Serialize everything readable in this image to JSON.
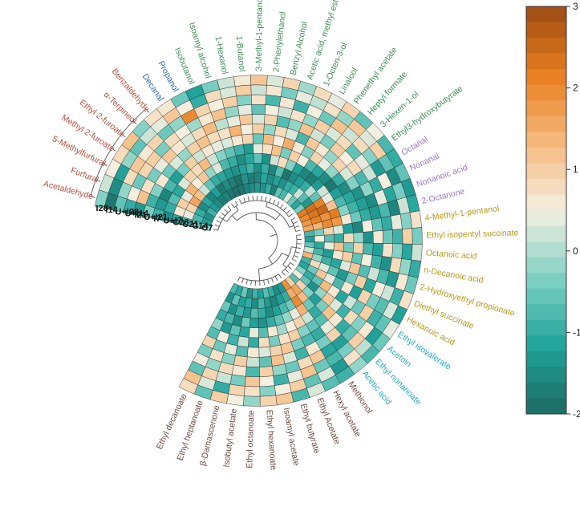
{
  "chart_data": {
    "type": "heatmap",
    "layout": "circular",
    "samples": [
      "C7",
      "C14",
      "C21",
      "C28",
      "U+I7",
      "I7",
      "U+I21",
      "I21",
      "U+I14",
      "U+I28",
      "I14",
      "I28"
    ],
    "compounds": [
      {
        "name": "Acetaldehyde",
        "group": "aldehydes"
      },
      {
        "name": "Furfural",
        "group": "aldehydes"
      },
      {
        "name": "5-Methylfurfural",
        "group": "aldehydes"
      },
      {
        "name": "Methyl 2-furoate",
        "group": "aldehydes"
      },
      {
        "name": "Ethyl 2-furoate",
        "group": "aldehydes"
      },
      {
        "name": "α-Terpineol",
        "group": "aldehydes"
      },
      {
        "name": "Benzaldehyde",
        "group": "aldehydes"
      },
      {
        "name": "Decanal",
        "group": "blue"
      },
      {
        "name": "Propanol",
        "group": "blue"
      },
      {
        "name": "Isobutanol",
        "group": "alcohols"
      },
      {
        "name": "Isoamyl alcohol",
        "group": "alcohols"
      },
      {
        "name": "1-Hexanol",
        "group": "alcohols"
      },
      {
        "name": "1-Butanol",
        "group": "alcohols"
      },
      {
        "name": "3-Methyl-1-pentanol",
        "group": "alcohols"
      },
      {
        "name": "2-Phenylethanol",
        "group": "alcohols"
      },
      {
        "name": "Benzyl Alcohol",
        "group": "alcohols"
      },
      {
        "name": "Acetic acid, methyl ester",
        "group": "alcohols"
      },
      {
        "name": "1-Octen-3-ol",
        "group": "alcohols"
      },
      {
        "name": "Linalool",
        "group": "alcohols"
      },
      {
        "name": "Phenethyl acetate",
        "group": "alcohols"
      },
      {
        "name": "Heptyl formate",
        "group": "alcohols"
      },
      {
        "name": "3-Hexen-1-ol",
        "group": "alcohols"
      },
      {
        "name": "Ethyl3-hydroxybutyrate",
        "group": "alcohols"
      },
      {
        "name": "Octanal",
        "group": "purple"
      },
      {
        "name": "Nonanal",
        "group": "purple"
      },
      {
        "name": "Nonanoic acid",
        "group": "purple"
      },
      {
        "name": "2-Octanone",
        "group": "purple"
      },
      {
        "name": "4-Methyl-1-pentanol",
        "group": "olive"
      },
      {
        "name": "Ethyl isopentyl succinate",
        "group": "olive"
      },
      {
        "name": "Octanoic acid",
        "group": "olive"
      },
      {
        "name": "n-Decanoic acid",
        "group": "olive"
      },
      {
        "name": "2-Hydroxyethyl propionate",
        "group": "olive"
      },
      {
        "name": "Diethyl succinate",
        "group": "olive"
      },
      {
        "name": "Hexanoic acid",
        "group": "olive"
      },
      {
        "name": "Ethyl isovalerate",
        "group": "cyan"
      },
      {
        "name": "Acetoin",
        "group": "cyan"
      },
      {
        "name": "Ethyl nonanoate",
        "group": "cyan"
      },
      {
        "name": "Acetic acid",
        "group": "cyan"
      },
      {
        "name": "Methionol",
        "group": "esters"
      },
      {
        "name": "Hexyl acetate",
        "group": "esters"
      },
      {
        "name": "Ethyl Acetate",
        "group": "esters"
      },
      {
        "name": "Ethyl butyrate",
        "group": "esters"
      },
      {
        "name": "Isoamyl acetate",
        "group": "esters"
      },
      {
        "name": "Ethyl hexanoate",
        "group": "esters"
      },
      {
        "name": "Ethyl octanoate",
        "group": "esters"
      },
      {
        "name": "Isobutyl acetate",
        "group": "esters"
      },
      {
        "name": "β-Damascenone",
        "group": "esters"
      },
      {
        "name": "Ethyl heptanoate",
        "group": "esters"
      },
      {
        "name": "Ethyl decanoate",
        "group": "esters"
      }
    ],
    "group_colors": {
      "aldehydes": "#b5503f",
      "blue": "#2f6aa6",
      "alcohols": "#3f8f5a",
      "purple": "#9a78c4",
      "olive": "#b39a1a",
      "cyan": "#2aa7b5",
      "esters": "#6b4a3f"
    },
    "values": [
      [
        -0.2,
        -0.5,
        -0.8,
        -1.1,
        -1.4,
        -0.9,
        -0.4,
        -1.3,
        -1.0,
        -0.6,
        -1.8,
        -0.3
      ],
      [
        -1.2,
        -0.8,
        0.4,
        0.6,
        -1.0,
        -1.3,
        -0.9,
        1.2,
        0.5,
        -0.2,
        -1.5,
        0.2
      ],
      [
        -1.4,
        -1.0,
        0.9,
        1.0,
        -0.7,
        -1.6,
        -0.3,
        0.7,
        -0.5,
        0.8,
        -1.2,
        0.5
      ],
      [
        -0.9,
        -1.5,
        1.6,
        0.4,
        -1.1,
        -0.8,
        0.6,
        -0.4,
        0.9,
        1.1,
        -0.2,
        0.8
      ],
      [
        -1.3,
        -1.1,
        1.2,
        1.4,
        0.3,
        -1.2,
        -0.5,
        0.4,
        1.0,
        0.6,
        -0.6,
        1.2
      ],
      [
        -1.5,
        -1.6,
        0.2,
        0.5,
        0.9,
        -0.4,
        0.3,
        1.1,
        -0.4,
        0.9,
        0.2,
        -0.3
      ],
      [
        -1.7,
        -1.2,
        -0.6,
        1.1,
        0.8,
        1.0,
        -0.2,
        0.6,
        0.8,
        -0.5,
        0.4,
        0.7
      ],
      [
        -1.6,
        -1.8,
        -1.0,
        -0.2,
        1.3,
        0.2,
        1.0,
        0.3,
        0.5,
        -0.2,
        1.1,
        0.6
      ],
      [
        -1.8,
        -1.5,
        -1.1,
        0.3,
        0.2,
        0.6,
        1.2,
        0.8,
        -0.1,
        2.0,
        0.5,
        -0.5
      ],
      [
        -1.9,
        -1.7,
        -1.3,
        -0.8,
        -0.3,
        0.4,
        0.8,
        1.3,
        0.6,
        0.9,
        -1.0,
        -1.2
      ],
      [
        -1.8,
        -1.9,
        -1.4,
        -1.0,
        -0.6,
        0.3,
        0.7,
        0.1,
        1.2,
        0.5,
        0.8,
        -0.4
      ],
      [
        -1.6,
        -1.4,
        -1.2,
        -1.5,
        -0.9,
        0.6,
        1.4,
        0.4,
        -0.2,
        1.0,
        0.3,
        0.2
      ],
      [
        -1.5,
        -1.7,
        -0.9,
        -1.1,
        -1.3,
        0.9,
        0.5,
        1.1,
        0.4,
        -0.3,
        1.0,
        0.6
      ],
      [
        -1.3,
        -1.6,
        -1.5,
        -0.6,
        0.4,
        -0.5,
        1.0,
        0.3,
        -0.6,
        0.7,
        0.2,
        1.1
      ],
      [
        -1.4,
        -1.1,
        -1.0,
        -1.4,
        0.7,
        1.3,
        -0.2,
        0.9,
        0.5,
        -0.8,
        0.6,
        0.3
      ],
      [
        -1.0,
        -1.5,
        -1.6,
        0.2,
        1.2,
        0.5,
        0.8,
        -0.7,
        0.2,
        0.6,
        -0.4,
        0.9
      ],
      [
        -1.7,
        -1.2,
        -0.7,
        0.8,
        -0.4,
        1.5,
        0.3,
        -0.2,
        0.7,
        -0.9,
        0.4,
        -0.1
      ],
      [
        -0.6,
        -1.4,
        -1.8,
        -0.3,
        1.0,
        0.6,
        -0.8,
        1.2,
        -0.2,
        0.5,
        0.1,
        0.8
      ],
      [
        -0.8,
        -1.0,
        -1.5,
        -1.2,
        0.5,
        -0.3,
        1.1,
        0.2,
        1.0,
        -0.5,
        0.7,
        0.4
      ],
      [
        0.3,
        -0.9,
        -1.2,
        -1.6,
        -0.8,
        0.9,
        0.6,
        -0.4,
        0.3,
        1.2,
        -0.2,
        0.9
      ],
      [
        -0.5,
        0.2,
        -1.0,
        -1.7,
        -1.1,
        0.4,
        -0.2,
        1.0,
        0.8,
        0.2,
        1.1,
        -0.6
      ],
      [
        -1.1,
        -0.7,
        0.1,
        -1.3,
        -1.5,
        -0.2,
        0.9,
        0.5,
        -0.6,
        0.8,
        0.3,
        0.5
      ],
      [
        -0.4,
        -1.3,
        -0.6,
        0.2,
        -1.8,
        -1.0,
        0.3,
        0.8,
        0.4,
        -0.3,
        1.0,
        -0.8
      ],
      [
        2.2,
        2.4,
        2.1,
        0.4,
        -1.2,
        -1.5,
        -0.3,
        -0.8,
        0.2,
        -1.3,
        -0.6,
        -1.0
      ],
      [
        2.0,
        2.3,
        2.5,
        1.2,
        -0.8,
        -1.1,
        -1.4,
        -0.2,
        -1.0,
        0.5,
        -1.5,
        -0.6
      ],
      [
        1.8,
        2.1,
        1.9,
        2.2,
        -0.3,
        -0.9,
        -1.2,
        -1.5,
        0.4,
        -1.1,
        -0.4,
        -1.3
      ],
      [
        1.6,
        1.4,
        2.0,
        1.8,
        0.6,
        -0.5,
        -1.0,
        -1.3,
        -0.8,
        -1.6,
        0.2,
        -1.1
      ],
      [
        -0.8,
        -0.4,
        0.9,
        0.3,
        -1.2,
        -1.6,
        0.5,
        -0.6,
        -1.0,
        0.4,
        -0.3,
        0.7
      ],
      [
        -1.2,
        0.5,
        -0.7,
        -1.0,
        0.8,
        -0.2,
        -1.4,
        0.6,
        -0.5,
        -0.9,
        1.0,
        -0.4
      ],
      [
        -0.6,
        -1.1,
        0.4,
        1.2,
        -0.5,
        0.9,
        -0.8,
        -1.2,
        0.7,
        -0.3,
        -1.1,
        0.2
      ],
      [
        0.2,
        -0.8,
        -1.3,
        0.6,
        1.0,
        -0.6,
        0.5,
        -0.9,
        -1.4,
        0.8,
        -0.2,
        -1.0
      ],
      [
        1.4,
        -0.2,
        -0.9,
        -1.1,
        0.3,
        1.1,
        -0.7,
        0.2,
        -0.8,
        -1.3,
        0.6,
        -0.5
      ],
      [
        -0.9,
        0.8,
        0.3,
        -0.6,
        -1.3,
        -0.4,
        1.0,
        -1.1,
        0.5,
        0.2,
        -0.9,
        0.7
      ],
      [
        -1.1,
        -0.5,
        1.1,
        0.4,
        -0.8,
        0.6,
        -1.2,
        0.9,
        -0.4,
        -0.7,
        0.3,
        -1.2
      ],
      [
        -0.3,
        -1.0,
        -0.6,
        1.3,
        0.6,
        -1.1,
        0.2,
        -0.5,
        1.0,
        -0.9,
        -0.6,
        0.4
      ],
      [
        0.5,
        -0.6,
        -1.4,
        -0.2,
        1.1,
        0.3,
        -0.9,
        0.8,
        -0.3,
        0.6,
        -1.2,
        -0.5
      ],
      [
        -0.7,
        0.9,
        -0.3,
        -1.2,
        -0.4,
        1.2,
        0.6,
        -1.0,
        -0.6,
        1.0,
        0.1,
        -0.8
      ],
      [
        1.0,
        1.6,
        1.3,
        -0.5,
        -1.0,
        -0.7,
        0.4,
        0.9,
        -1.2,
        -0.4,
        0.7,
        -0.2
      ],
      [
        1.9,
        1.5,
        2.0,
        1.4,
        0.2,
        -0.6,
        -1.0,
        -0.4,
        -1.1,
        -0.8,
        -1.3,
        -0.9
      ],
      [
        -1.3,
        -1.0,
        -0.5,
        0.4,
        0.9,
        -0.3,
        -0.8,
        0.6,
        1.1,
        -0.5,
        0.3,
        -0.7
      ],
      [
        -1.5,
        -1.2,
        -0.8,
        -0.2,
        0.5,
        1.0,
        -0.4,
        -0.9,
        0.8,
        1.2,
        -0.6,
        0.3
      ],
      [
        -1.0,
        -1.6,
        -1.2,
        -0.6,
        -0.1,
        0.7,
        1.1,
        0.3,
        -0.5,
        0.4,
        1.0,
        -0.8
      ],
      [
        -0.7,
        -1.3,
        -1.5,
        -1.0,
        0.6,
        -0.4,
        0.9,
        1.2,
        -0.2,
        -0.9,
        0.5,
        1.1
      ],
      [
        -1.2,
        -0.8,
        -1.0,
        -1.4,
        -0.7,
        0.8,
        0.3,
        -0.6,
        1.0,
        0.5,
        -0.3,
        0.9
      ],
      [
        -0.9,
        -1.5,
        -0.7,
        -1.2,
        0.4,
        -1.0,
        0.6,
        0.2,
        -0.8,
        1.1,
        0.7,
        -0.2
      ],
      [
        -1.4,
        -1.0,
        -1.3,
        -0.5,
        -1.1,
        0.2,
        -0.7,
        1.0,
        0.6,
        -0.4,
        0.9,
        0.5
      ],
      [
        -0.5,
        -1.2,
        -0.9,
        -1.5,
        -0.6,
        -0.9,
        0.4,
        -0.3,
        0.8,
        0.2,
        -1.0,
        1.0
      ],
      [
        -1.1,
        -0.6,
        -1.4,
        -0.8,
        -1.3,
        0.5,
        -0.5,
        0.7,
        -0.2,
        0.9,
        0.3,
        -0.6
      ],
      [
        -0.8,
        -1.4,
        -0.5,
        -1.0,
        -0.2,
        -0.7,
        0.9,
        -0.4,
        0.5,
        -0.6,
        1.2,
        0.8
      ]
    ],
    "color_scale": {
      "min": -2,
      "max": 3,
      "ticks": [
        3,
        2,
        1,
        0,
        -1,
        -2
      ],
      "stops": [
        "#1d6b63",
        "#20a39b",
        "#7fd1c4",
        "#f5efe0",
        "#f6b97d",
        "#e87e1f",
        "#9c4a12"
      ]
    }
  }
}
